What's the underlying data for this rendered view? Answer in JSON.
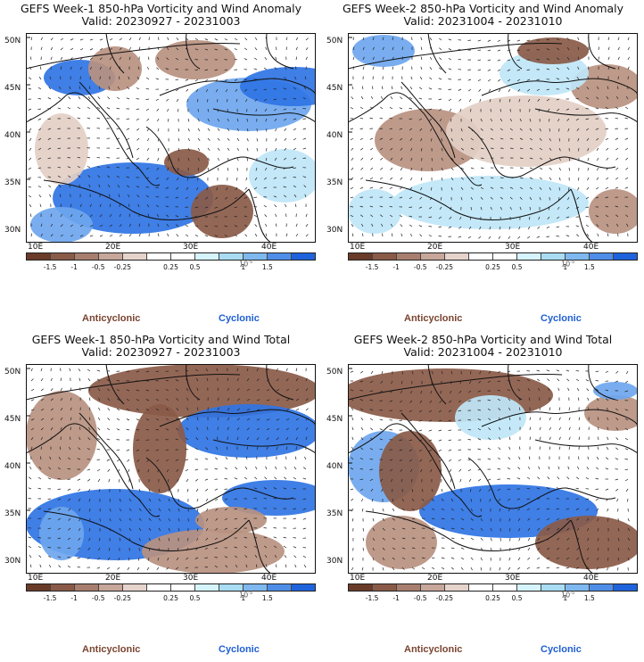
{
  "panels": [
    {
      "id": "p1",
      "title": "GEFS Week-1 850-hPa Vorticity and Wind Anomaly",
      "valid": "Valid: 20230927 - 20231003"
    },
    {
      "id": "p2",
      "title": "GEFS Week-2 850-hPa Vorticity and Wind Anomaly",
      "valid": "Valid: 20231004 - 20231010"
    },
    {
      "id": "p3",
      "title": "GEFS Week-1 850-hPa Vorticity and Wind Total",
      "valid": "Valid: 20230927 - 20231003"
    },
    {
      "id": "p4",
      "title": "GEFS Week-2 850-hPa Vorticity and Wind Total",
      "valid": "Valid: 20231004 - 20231010"
    }
  ],
  "map": {
    "lat_labels": [
      "50N",
      "45N",
      "40N",
      "35N",
      "30N"
    ],
    "lon_labels": [
      "10E",
      "20E",
      "30E",
      "40E"
    ]
  },
  "colorbar": {
    "colors": [
      "#6b3b2a",
      "#8a5a48",
      "#a87f6e",
      "#c7a79a",
      "#e6d4cc",
      "#ffffff",
      "#ffffff",
      "#d6f4fb",
      "#a9dcf3",
      "#7fb8ef",
      "#4f8ee8",
      "#1f63dc"
    ],
    "tick_labels": [
      "-1.5",
      "-1",
      "-0.5",
      "-0.25",
      "0.25",
      "0.5",
      "1",
      "1.5"
    ],
    "unit_label": "10",
    "unit_exponent": "-5"
  },
  "legend": {
    "anticyclonic": "Anticyclonic",
    "cyclonic": "Cyclonic"
  },
  "colors": {
    "anticyclonic": "#7a4430",
    "cyclonic": "#1f5fd4",
    "strong_brown": "#8a5a48",
    "mid_brown": "#b99180",
    "light_brown": "#e3cfc5",
    "light_blue": "#bfe6f7",
    "mid_blue": "#6ea6ee",
    "strong_blue": "#2f74e4"
  }
}
